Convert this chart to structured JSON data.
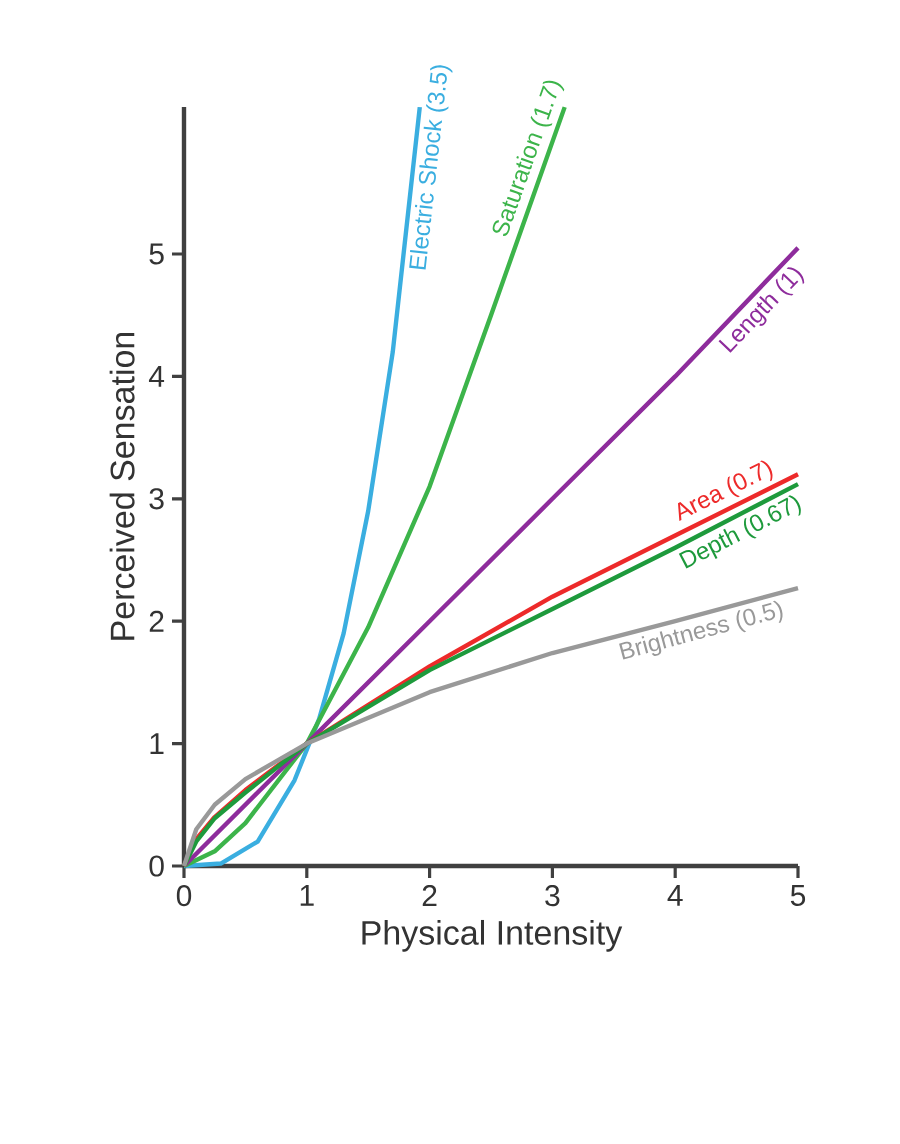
{
  "chart_data": {
    "type": "line",
    "xlabel": "Physical Intensity",
    "ylabel": "Perceived Sensation",
    "xlim": [
      0,
      5
    ],
    "ylim": [
      0,
      6.2
    ],
    "xticks": [
      0,
      1,
      2,
      3,
      4,
      5
    ],
    "yticks": [
      0,
      1,
      2,
      3,
      4,
      5
    ],
    "series": [
      {
        "name": "Electric Shock (3.5)",
        "color": "#3aaee0",
        "x": [
          0,
          0.3,
          0.6,
          0.9,
          1.1,
          1.3,
          1.5,
          1.7,
          1.92
        ],
        "values": [
          0,
          0.02,
          0.2,
          0.7,
          1.2,
          1.9,
          2.9,
          4.2,
          6.2
        ]
      },
      {
        "name": "Saturation (1.7)",
        "color": "#3cb44a",
        "x": [
          0,
          0.25,
          0.5,
          1,
          1.5,
          2,
          2.5,
          3.1
        ],
        "values": [
          0,
          0.12,
          0.35,
          1,
          1.95,
          3.1,
          4.5,
          6.2
        ]
      },
      {
        "name": "Length (1)",
        "color": "#8e2c9c",
        "x": [
          0,
          1,
          2,
          3,
          4,
          5
        ],
        "values": [
          0,
          1,
          2,
          3,
          4,
          5.05
        ]
      },
      {
        "name": "Area (0.7)",
        "color": "#ed2a2a",
        "x": [
          0,
          0.1,
          0.25,
          0.5,
          1,
          2,
          3,
          4,
          5
        ],
        "values": [
          0,
          0.22,
          0.4,
          0.62,
          1,
          1.63,
          2.2,
          2.7,
          3.2
        ]
      },
      {
        "name": "Depth (0.67)",
        "color": "#1e9a3c",
        "x": [
          0,
          0.1,
          0.25,
          0.5,
          1,
          2,
          3,
          4,
          5
        ],
        "values": [
          0,
          0.2,
          0.39,
          0.6,
          1,
          1.6,
          2.1,
          2.6,
          3.12
        ]
      },
      {
        "name": "Brightness (0.5)",
        "color": "#999999",
        "x": [
          0,
          0.1,
          0.25,
          0.5,
          1,
          2,
          3,
          4,
          5
        ],
        "values": [
          0,
          0.3,
          0.5,
          0.71,
          1,
          1.42,
          1.74,
          2.0,
          2.27
        ]
      }
    ]
  }
}
